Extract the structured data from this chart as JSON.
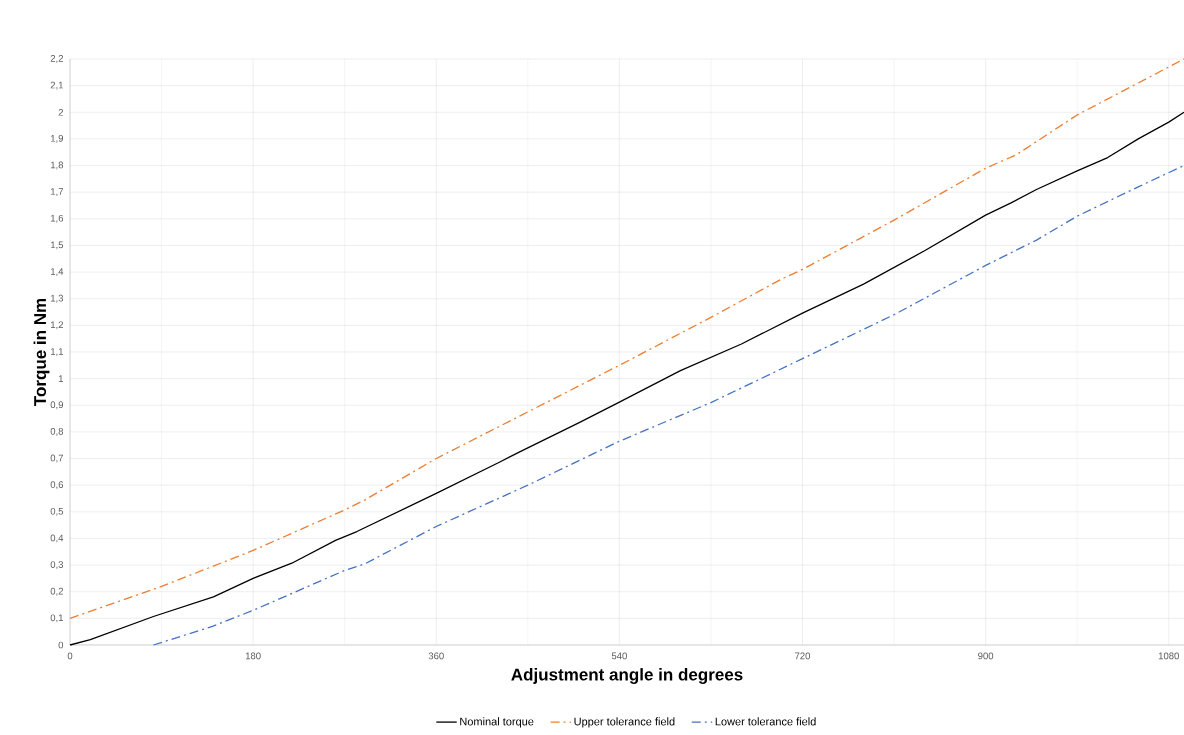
{
  "chart_data": {
    "type": "line",
    "xlabel": "Adjustment angle in degrees",
    "ylabel": "Torque in Nm",
    "xlim": [
      0,
      1095
    ],
    "ylim": [
      0,
      2.2
    ],
    "xticks": [
      0,
      {
        "value": 90,
        "label": null
      },
      180,
      {
        "value": 270,
        "label": null
      },
      360,
      {
        "value": 450,
        "label": null
      },
      540,
      {
        "value": 630,
        "label": null
      },
      720,
      {
        "value": 810,
        "label": null
      },
      900,
      {
        "value": 990,
        "label": null
      },
      1080
    ],
    "yticks": [
      0,
      {
        "value": 0.1,
        "label": "0,1"
      },
      {
        "value": 0.2,
        "label": "0,2"
      },
      {
        "value": 0.3,
        "label": "0,3"
      },
      {
        "value": 0.4,
        "label": "0,4"
      },
      {
        "value": 0.5,
        "label": "0,5"
      },
      {
        "value": 0.6,
        "label": "0,6"
      },
      {
        "value": 0.7,
        "label": "0,7"
      },
      {
        "value": 0.8,
        "label": "0,8"
      },
      {
        "value": 0.9,
        "label": "0,9"
      },
      1,
      {
        "value": 1.1,
        "label": "1,1"
      },
      {
        "value": 1.2,
        "label": "1,2"
      },
      {
        "value": 1.3,
        "label": "1,3"
      },
      {
        "value": 1.4,
        "label": "1,4"
      },
      {
        "value": 1.5,
        "label": "1,5"
      },
      {
        "value": 1.6,
        "label": "1,6"
      },
      {
        "value": 1.7,
        "label": "1,7"
      },
      {
        "value": 1.8,
        "label": "1,8"
      },
      {
        "value": 1.9,
        "label": "1,9"
      },
      2,
      {
        "value": 2.1,
        "label": "2,1"
      },
      {
        "value": 2.2,
        "label": "2,2"
      }
    ],
    "grid": true,
    "legend": "bottom",
    "marker": "none",
    "series": [
      {
        "name": "Nominal torque",
        "color": "#000000",
        "line_style": "solid",
        "x": [
          0,
          20,
          82,
          141,
          180,
          218,
          261,
          282,
          360,
          422,
          444,
          501,
          540,
          600,
          660,
          720,
          780,
          840,
          900,
          925,
          950,
          990,
          1020,
          1050,
          1080,
          1095
        ],
        "values": [
          0,
          0.02,
          0.107,
          0.181,
          0.25,
          0.307,
          0.393,
          0.426,
          0.569,
          0.686,
          0.729,
          0.836,
          0.912,
          1.03,
          1.13,
          1.246,
          1.355,
          1.48,
          1.614,
          1.66,
          1.71,
          1.78,
          1.83,
          1.9,
          1.963,
          2.0
        ]
      },
      {
        "name": "Upper tolerance field",
        "color": "#ed7d31",
        "line_style": "dashdot",
        "x": [
          0,
          90,
          180,
          270,
          290,
          360,
          450,
          540,
          630,
          700,
          720,
          810,
          900,
          930,
          990,
          1050,
          1095
        ],
        "values": [
          0.1,
          0.22,
          0.355,
          0.507,
          0.545,
          0.7,
          0.875,
          1.05,
          1.23,
          1.375,
          1.41,
          1.595,
          1.79,
          1.84,
          1.99,
          2.11,
          2.2
        ]
      },
      {
        "name": "Lower tolerance field",
        "color": "#4472c4",
        "line_style": "dashdot",
        "x": [
          82,
          140,
          180,
          270,
          290,
          360,
          450,
          540,
          630,
          720,
          810,
          900,
          950,
          990,
          1050,
          1095
        ],
        "values": [
          0,
          0.07,
          0.13,
          0.28,
          0.305,
          0.445,
          0.6,
          0.765,
          0.91,
          1.075,
          1.24,
          1.425,
          1.52,
          1.61,
          1.72,
          1.8
        ]
      }
    ]
  }
}
